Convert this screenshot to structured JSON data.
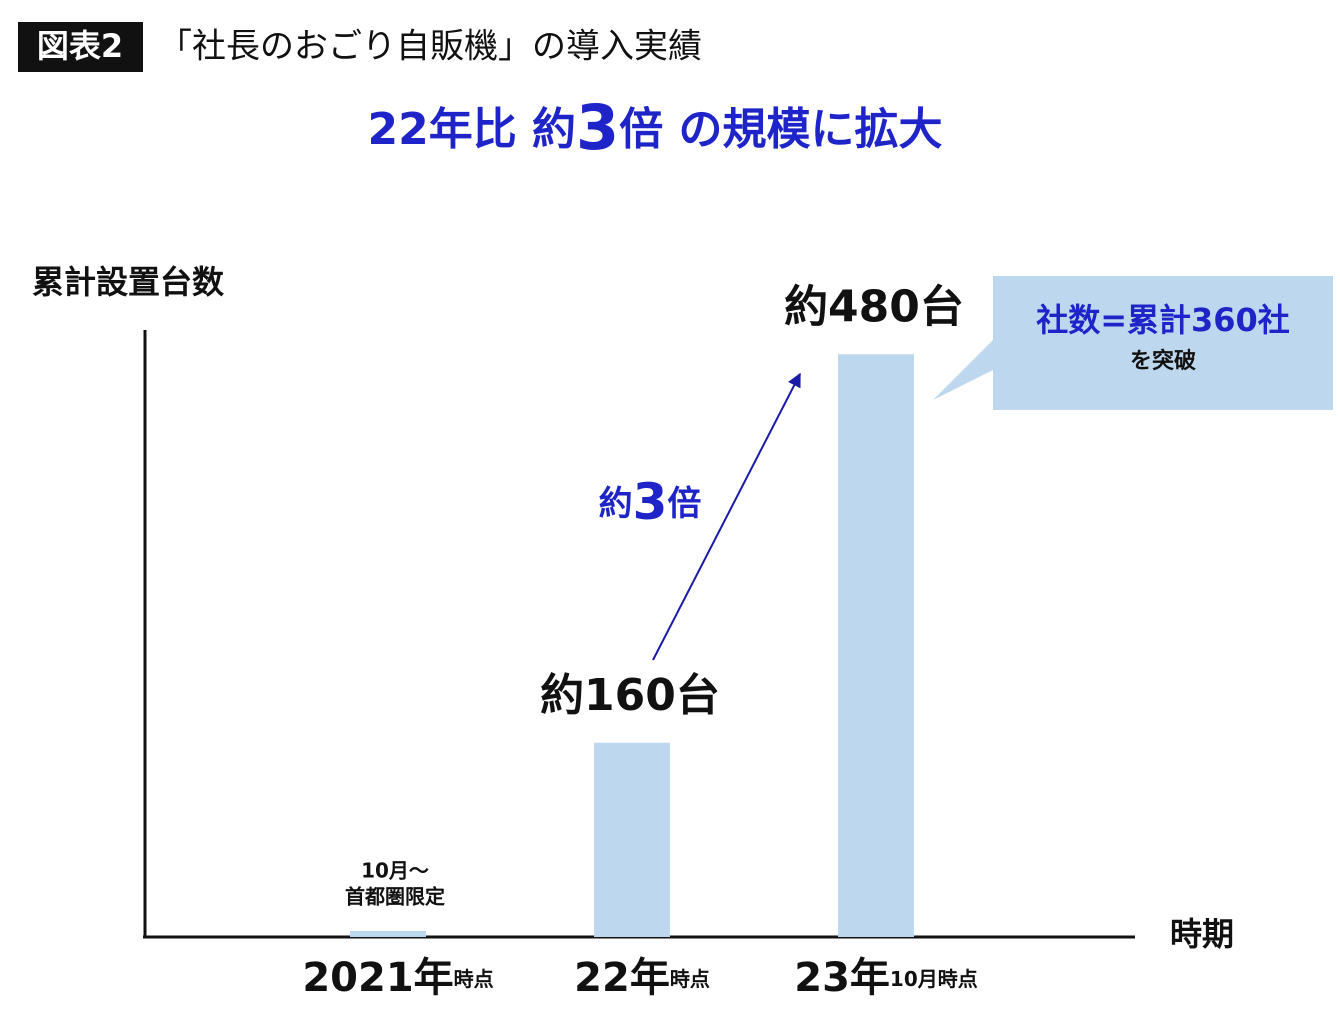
{
  "badge": "図表2",
  "title": "「社長のおごり自販機」の導入実績",
  "subtitle_parts": [
    "22年比 約",
    "3",
    "倍 の規模に拡大"
  ],
  "chart_data": {
    "type": "bar",
    "y_label": "累計設置台数",
    "x_label": "時期",
    "categories": [
      "2021年",
      "22年",
      "23年"
    ],
    "category_suffixes": [
      "時点",
      "時点",
      "10月時点"
    ],
    "values": [
      5,
      160,
      480
    ],
    "value_labels": [
      null,
      "約160台",
      "約480台"
    ],
    "color": "#bdd7ee",
    "ylim": [
      0,
      500
    ],
    "notes": [
      "10月～",
      "首都圏限定"
    ],
    "arrow_label_parts": [
      "約",
      "3",
      "倍"
    ],
    "callout": [
      "社数=累計360社",
      "を突破"
    ]
  }
}
